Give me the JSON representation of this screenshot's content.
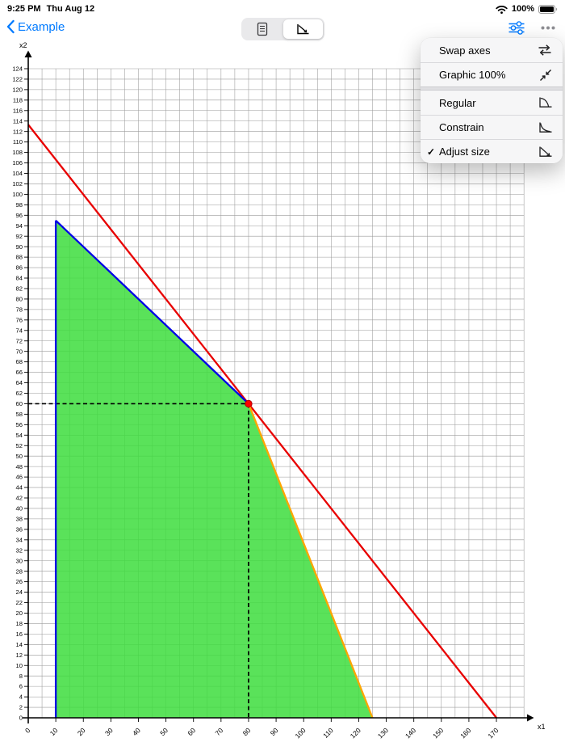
{
  "status_bar": {
    "time": "9:25 PM",
    "date": "Thu Aug 12",
    "battery": "100%"
  },
  "nav": {
    "back_label": "Example"
  },
  "menu": {
    "groups": [
      {
        "items": [
          {
            "label": "Swap axes",
            "check": ""
          },
          {
            "label": "Graphic 100%",
            "check": ""
          }
        ]
      },
      {
        "items": [
          {
            "label": "Regular",
            "check": ""
          },
          {
            "label": "Constrain",
            "check": ""
          },
          {
            "label": "Adjust size",
            "check": "✓"
          }
        ]
      }
    ]
  },
  "chart_data": {
    "type": "line",
    "title": "",
    "xlabel": "x1",
    "ylabel": "x2",
    "xlim": [
      0,
      182
    ],
    "ylim": [
      0,
      126
    ],
    "grid": true,
    "x_ticks": [
      0,
      10,
      20,
      30,
      40,
      50,
      60,
      70,
      80,
      90,
      100,
      110,
      120,
      130,
      140,
      150,
      160,
      170
    ],
    "y_ticks": [
      0,
      2,
      4,
      6,
      8,
      10,
      12,
      14,
      16,
      18,
      20,
      22,
      24,
      26,
      28,
      30,
      32,
      34,
      36,
      38,
      40,
      42,
      44,
      46,
      48,
      50,
      52,
      54,
      56,
      58,
      60,
      62,
      64,
      66,
      68,
      70,
      72,
      74,
      76,
      78,
      80,
      82,
      84,
      86,
      88,
      90,
      92,
      94,
      96,
      98,
      100,
      102,
      104,
      106,
      108,
      110,
      112,
      114,
      116,
      118,
      120,
      122,
      124
    ],
    "x_grid_step": 5,
    "x_grid_max": 180,
    "y_grid_step": 2,
    "y_grid_max": 124,
    "series": [
      {
        "name": "constraint-line-red",
        "color": "#e80000",
        "points": [
          [
            0,
            113.3
          ],
          [
            170,
            0
          ]
        ]
      },
      {
        "name": "constraint-line-blue-vertical",
        "color": "#0000e6",
        "points": [
          [
            10,
            0
          ],
          [
            10,
            95
          ]
        ]
      },
      {
        "name": "constraint-line-blue",
        "color": "#0000e6",
        "points": [
          [
            10,
            95
          ],
          [
            80,
            60
          ]
        ]
      },
      {
        "name": "constraint-line-orange",
        "color": "#ffa500",
        "points": [
          [
            80,
            60
          ],
          [
            125,
            0
          ]
        ]
      }
    ],
    "feasible_region": {
      "color": "#3ddd3d",
      "opacity": 0.85,
      "points": [
        [
          10,
          0
        ],
        [
          10,
          95
        ],
        [
          80,
          60
        ],
        [
          125,
          0
        ]
      ]
    },
    "solution_point": {
      "x": 80,
      "y": 60,
      "color": "#ff0000"
    },
    "guide_lines": {
      "x": 80,
      "y": 60,
      "style": "dashed",
      "color": "#000000"
    }
  }
}
